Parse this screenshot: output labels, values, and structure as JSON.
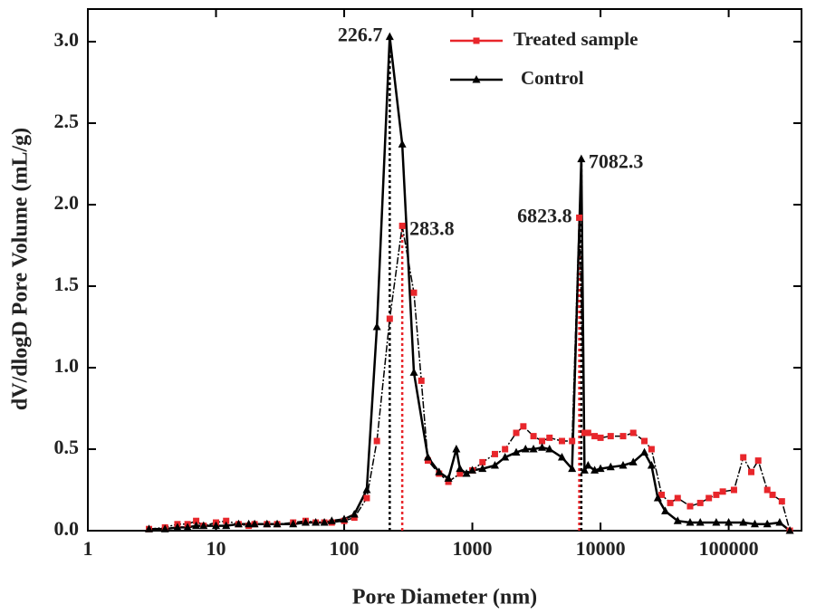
{
  "chart_data": {
    "type": "line",
    "xlabel": "Pore Diameter (nm)",
    "ylabel": "dV/dlogD Pore Volume (mL/g)",
    "xscale": "log",
    "xlim": [
      1,
      370000
    ],
    "ylim": [
      0,
      3.2
    ],
    "xticks": [
      1,
      10,
      100,
      1000,
      10000,
      100000
    ],
    "yticks": [
      {
        "value": 0,
        "label": "0.0"
      },
      {
        "value": 0.5,
        "label": "0.5"
      },
      {
        "value": 1,
        "label": "1.0"
      },
      {
        "value": 1.5,
        "label": "1.5"
      },
      {
        "value": 2,
        "label": "2.0"
      },
      {
        "value": 2.5,
        "label": "2.5"
      },
      {
        "value": 3,
        "label": "3.0"
      }
    ],
    "legend": "upper center",
    "series": [
      {
        "name": "Treated sample",
        "color": "#e8262b",
        "line_color": "#000000",
        "marker": "square",
        "x": [
          3,
          4,
          5,
          6,
          7,
          8,
          10,
          12,
          15,
          18,
          20,
          25,
          30,
          40,
          50,
          60,
          70,
          80,
          100,
          120,
          150,
          180,
          226.7,
          283.8,
          350,
          400,
          450,
          550,
          650,
          800,
          1000,
          1200,
          1500,
          1800,
          2200,
          2500,
          3000,
          3500,
          4000,
          5000,
          6000,
          6823.8,
          7500,
          8000,
          9000,
          10000,
          12000,
          15000,
          18000,
          22000,
          25000,
          30000,
          35000,
          40000,
          50000,
          60000,
          70000,
          80000,
          90000,
          110000,
          130000,
          150000,
          170000,
          200000,
          220000,
          260000,
          300000
        ],
        "values": [
          0.01,
          0.02,
          0.04,
          0.04,
          0.06,
          0.03,
          0.05,
          0.06,
          0.04,
          0.03,
          0.04,
          0.04,
          0.04,
          0.05,
          0.06,
          0.05,
          0.05,
          0.05,
          0.06,
          0.08,
          0.2,
          0.55,
          1.3,
          1.87,
          1.46,
          0.92,
          0.43,
          0.35,
          0.3,
          0.35,
          0.37,
          0.42,
          0.47,
          0.5,
          0.6,
          0.64,
          0.58,
          0.55,
          0.57,
          0.55,
          0.55,
          1.92,
          0.6,
          0.6,
          0.58,
          0.57,
          0.58,
          0.58,
          0.6,
          0.55,
          0.5,
          0.22,
          0.17,
          0.2,
          0.15,
          0.17,
          0.2,
          0.22,
          0.24,
          0.25,
          0.45,
          0.36,
          0.43,
          0.25,
          0.22,
          0.18,
          0.0
        ]
      },
      {
        "name": "Control",
        "color": "#000000",
        "line_color": "#000000",
        "marker": "triangle",
        "x": [
          3,
          4,
          5,
          6,
          7,
          8,
          10,
          12,
          15,
          18,
          20,
          25,
          30,
          40,
          50,
          60,
          70,
          80,
          100,
          120,
          150,
          180,
          226.7,
          283.8,
          350,
          450,
          550,
          650,
          750,
          800,
          900,
          1000,
          1200,
          1500,
          1800,
          2200,
          2600,
          3000,
          3500,
          4000,
          5000,
          6000,
          7082.3,
          7500,
          8000,
          9000,
          10000,
          12000,
          15000,
          18000,
          22000,
          25000,
          28000,
          32000,
          40000,
          50000,
          60000,
          80000,
          100000,
          130000,
          160000,
          200000,
          250000,
          300000
        ],
        "values": [
          0.01,
          0.01,
          0.02,
          0.02,
          0.03,
          0.03,
          0.03,
          0.03,
          0.04,
          0.04,
          0.04,
          0.04,
          0.04,
          0.04,
          0.05,
          0.05,
          0.05,
          0.06,
          0.07,
          0.1,
          0.25,
          1.25,
          3.03,
          2.37,
          0.97,
          0.45,
          0.36,
          0.32,
          0.5,
          0.38,
          0.35,
          0.37,
          0.38,
          0.4,
          0.45,
          0.48,
          0.5,
          0.5,
          0.51,
          0.5,
          0.45,
          0.38,
          2.28,
          0.37,
          0.4,
          0.37,
          0.38,
          0.39,
          0.4,
          0.42,
          0.48,
          0.4,
          0.2,
          0.12,
          0.06,
          0.05,
          0.05,
          0.05,
          0.05,
          0.05,
          0.04,
          0.04,
          0.05,
          0.0
        ]
      }
    ],
    "annotations": [
      {
        "text": "226.7",
        "x": 226.7,
        "y": 3.03,
        "color": "#000000"
      },
      {
        "text": "283.8",
        "x": 283.8,
        "y": 1.87,
        "color": "#e8262b"
      },
      {
        "text": "6823.8",
        "x": 6823.8,
        "y": 1.92,
        "color": "#e8262b"
      },
      {
        "text": "7082.3",
        "x": 7082.3,
        "y": 2.28,
        "color": "#000000"
      }
    ]
  }
}
